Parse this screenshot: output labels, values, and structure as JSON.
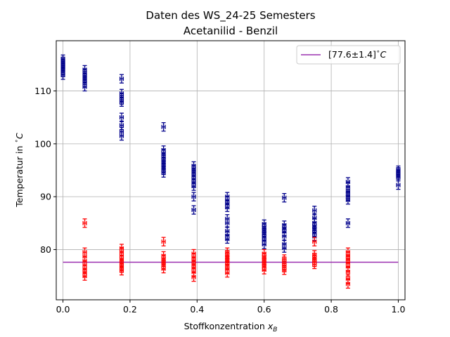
{
  "chart_data": {
    "type": "scatter",
    "title_line1": "Daten des WS_24-25 Semesters",
    "title_line2": "Acetanilid - Benzil",
    "xlabel_text": "Stoffkonzentration ",
    "xlabel_var": "x",
    "xlabel_sub": "B",
    "ylabel_text": "Temperatur in ",
    "ylabel_unit": "C",
    "xlim": [
      -0.02,
      1.02
    ],
    "ylim": [
      70.5,
      119.5
    ],
    "xticks": [
      0.0,
      0.2,
      0.4,
      0.6,
      0.8,
      1.0
    ],
    "xtick_labels": [
      "0.0",
      "0.2",
      "0.4",
      "0.6",
      "0.8",
      "1.0"
    ],
    "yticks": [
      80,
      90,
      100,
      110
    ],
    "ytick_labels": [
      "80",
      "90",
      "100",
      "110"
    ],
    "grid": true,
    "legend_position": "top-right",
    "error_x": 0.005,
    "error_y": 0.8,
    "colors": {
      "liquidus": "#00008b",
      "eutectic": "#ff0000",
      "line": "#9b30b0"
    },
    "line": {
      "label": "[77.6±1.4]",
      "label_unit": "C",
      "y": 77.6,
      "x": [
        0.0,
        1.0
      ]
    },
    "series": [
      {
        "role": "liquidus",
        "points": [
          [
            0.0,
            116.0
          ],
          [
            0.0,
            115.6
          ],
          [
            0.0,
            115.3
          ],
          [
            0.0,
            115.0
          ],
          [
            0.0,
            114.7
          ],
          [
            0.0,
            114.4
          ],
          [
            0.0,
            114.0
          ],
          [
            0.0,
            113.5
          ],
          [
            0.0,
            113.0
          ],
          [
            0.065,
            114.0
          ],
          [
            0.065,
            113.4
          ],
          [
            0.065,
            112.9
          ],
          [
            0.065,
            112.5
          ],
          [
            0.065,
            112.0
          ],
          [
            0.065,
            111.5
          ],
          [
            0.065,
            110.8
          ],
          [
            0.175,
            112.3
          ],
          [
            0.175,
            109.5
          ],
          [
            0.175,
            108.8
          ],
          [
            0.175,
            108.3
          ],
          [
            0.175,
            107.9
          ],
          [
            0.175,
            105.0
          ],
          [
            0.175,
            103.5
          ],
          [
            0.175,
            102.3
          ],
          [
            0.175,
            101.5
          ],
          [
            0.3,
            103.2
          ],
          [
            0.3,
            98.8
          ],
          [
            0.3,
            98.2
          ],
          [
            0.3,
            97.5
          ],
          [
            0.3,
            97.0
          ],
          [
            0.3,
            96.5
          ],
          [
            0.3,
            96.0
          ],
          [
            0.3,
            95.5
          ],
          [
            0.3,
            95.0
          ],
          [
            0.3,
            94.5
          ],
          [
            0.39,
            95.8
          ],
          [
            0.39,
            95.2
          ],
          [
            0.39,
            94.6
          ],
          [
            0.39,
            94.0
          ],
          [
            0.39,
            93.3
          ],
          [
            0.39,
            92.6
          ],
          [
            0.39,
            92.0
          ],
          [
            0.39,
            90.0
          ],
          [
            0.39,
            87.5
          ],
          [
            0.49,
            90.0
          ],
          [
            0.49,
            89.3
          ],
          [
            0.49,
            88.6
          ],
          [
            0.49,
            88.0
          ],
          [
            0.49,
            85.8
          ],
          [
            0.49,
            85.0
          ],
          [
            0.49,
            83.5
          ],
          [
            0.49,
            82.6
          ],
          [
            0.49,
            82.0
          ],
          [
            0.6,
            84.8
          ],
          [
            0.6,
            84.2
          ],
          [
            0.6,
            83.6
          ],
          [
            0.6,
            83.0
          ],
          [
            0.6,
            82.4
          ],
          [
            0.6,
            81.7
          ],
          [
            0.6,
            81.0
          ],
          [
            0.66,
            89.8
          ],
          [
            0.66,
            84.6
          ],
          [
            0.66,
            84.0
          ],
          [
            0.66,
            83.4
          ],
          [
            0.66,
            82.5
          ],
          [
            0.66,
            81.0
          ],
          [
            0.66,
            80.3
          ],
          [
            0.75,
            87.4
          ],
          [
            0.75,
            86.0
          ],
          [
            0.75,
            85.0
          ],
          [
            0.75,
            84.4
          ],
          [
            0.75,
            83.8
          ],
          [
            0.75,
            83.2
          ],
          [
            0.75,
            82.5
          ],
          [
            0.85,
            92.8
          ],
          [
            0.85,
            91.8
          ],
          [
            0.85,
            91.0
          ],
          [
            0.85,
            90.5
          ],
          [
            0.85,
            90.0
          ],
          [
            0.85,
            89.4
          ],
          [
            0.85,
            85.0
          ],
          [
            1.0,
            95.0
          ],
          [
            1.0,
            94.7
          ],
          [
            1.0,
            94.4
          ],
          [
            1.0,
            94.1
          ],
          [
            1.0,
            93.8
          ],
          [
            1.0,
            92.2
          ]
        ]
      },
      {
        "role": "eutectic",
        "points": [
          [
            0.065,
            85.0
          ],
          [
            0.065,
            79.5
          ],
          [
            0.065,
            78.7
          ],
          [
            0.065,
            77.8
          ],
          [
            0.065,
            77.0
          ],
          [
            0.065,
            76.3
          ],
          [
            0.065,
            75.6
          ],
          [
            0.065,
            75.0
          ],
          [
            0.175,
            80.2
          ],
          [
            0.175,
            79.6
          ],
          [
            0.175,
            78.8
          ],
          [
            0.175,
            78.1
          ],
          [
            0.175,
            77.5
          ],
          [
            0.175,
            77.0
          ],
          [
            0.175,
            76.5
          ],
          [
            0.175,
            76.0
          ],
          [
            0.3,
            81.5
          ],
          [
            0.3,
            78.8
          ],
          [
            0.3,
            78.2
          ],
          [
            0.3,
            77.6
          ],
          [
            0.3,
            77.0
          ],
          [
            0.3,
            76.4
          ],
          [
            0.39,
            79.2
          ],
          [
            0.39,
            78.5
          ],
          [
            0.39,
            77.8
          ],
          [
            0.39,
            77.2
          ],
          [
            0.39,
            76.5
          ],
          [
            0.39,
            75.8
          ],
          [
            0.39,
            74.8
          ],
          [
            0.49,
            79.5
          ],
          [
            0.49,
            79.0
          ],
          [
            0.49,
            78.5
          ],
          [
            0.49,
            78.0
          ],
          [
            0.49,
            77.5
          ],
          [
            0.49,
            77.0
          ],
          [
            0.49,
            76.3
          ],
          [
            0.49,
            75.6
          ],
          [
            0.6,
            79.2
          ],
          [
            0.6,
            78.6
          ],
          [
            0.6,
            78.0
          ],
          [
            0.6,
            77.4
          ],
          [
            0.6,
            76.8
          ],
          [
            0.6,
            76.2
          ],
          [
            0.66,
            78.2
          ],
          [
            0.66,
            77.8
          ],
          [
            0.66,
            77.4
          ],
          [
            0.66,
            77.0
          ],
          [
            0.66,
            76.6
          ],
          [
            0.66,
            76.1
          ],
          [
            0.75,
            81.5
          ],
          [
            0.75,
            79.0
          ],
          [
            0.75,
            78.5
          ],
          [
            0.75,
            78.0
          ],
          [
            0.75,
            77.6
          ],
          [
            0.75,
            77.2
          ],
          [
            0.85,
            79.5
          ],
          [
            0.85,
            78.8
          ],
          [
            0.85,
            78.2
          ],
          [
            0.85,
            77.5
          ],
          [
            0.85,
            76.8
          ],
          [
            0.85,
            75.8
          ],
          [
            0.85,
            74.5
          ],
          [
            0.85,
            73.5
          ]
        ]
      }
    ]
  }
}
